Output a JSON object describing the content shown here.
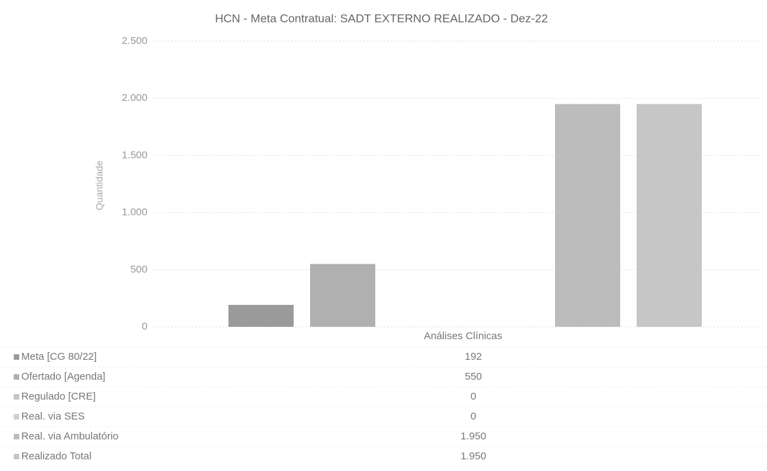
{
  "chart_data": {
    "type": "bar",
    "title": "HCN - Meta Contratual: SADT EXTERNO REALIZADO - Dez-22",
    "y_label": "Quantidade",
    "categories": [
      "Análises Clínicas"
    ],
    "series": [
      {
        "name": "Meta [CG 80/22]",
        "color": "#9a9a9a",
        "values": [
          192
        ]
      },
      {
        "name": "Ofertado [Agenda]",
        "color": "#b0b0b0",
        "values": [
          550
        ]
      },
      {
        "name": "Regulado [CRE]",
        "color": "#c4c4c4",
        "values": [
          0
        ]
      },
      {
        "name": "Real. via SES",
        "color": "#d0d0d0",
        "values": [
          0
        ]
      },
      {
        "name": "Real. via Ambulatório",
        "color": "#bcbcbc",
        "values": [
          1950
        ],
        "value_labels": [
          "1.950"
        ]
      },
      {
        "name": "Realizado Total",
        "color": "#c6c6c6",
        "values": [
          1950
        ],
        "value_labels": [
          "1.950"
        ]
      }
    ],
    "ylim": [
      0,
      2500
    ],
    "yticks": [
      0,
      500,
      {
        "value": 1000,
        "label": "1.000"
      },
      {
        "value": 1500,
        "label": "1.500"
      },
      {
        "value": 2000,
        "label": "2.000"
      },
      {
        "value": 2500,
        "label": "2.500"
      }
    ],
    "grid": true,
    "data_table": true
  }
}
